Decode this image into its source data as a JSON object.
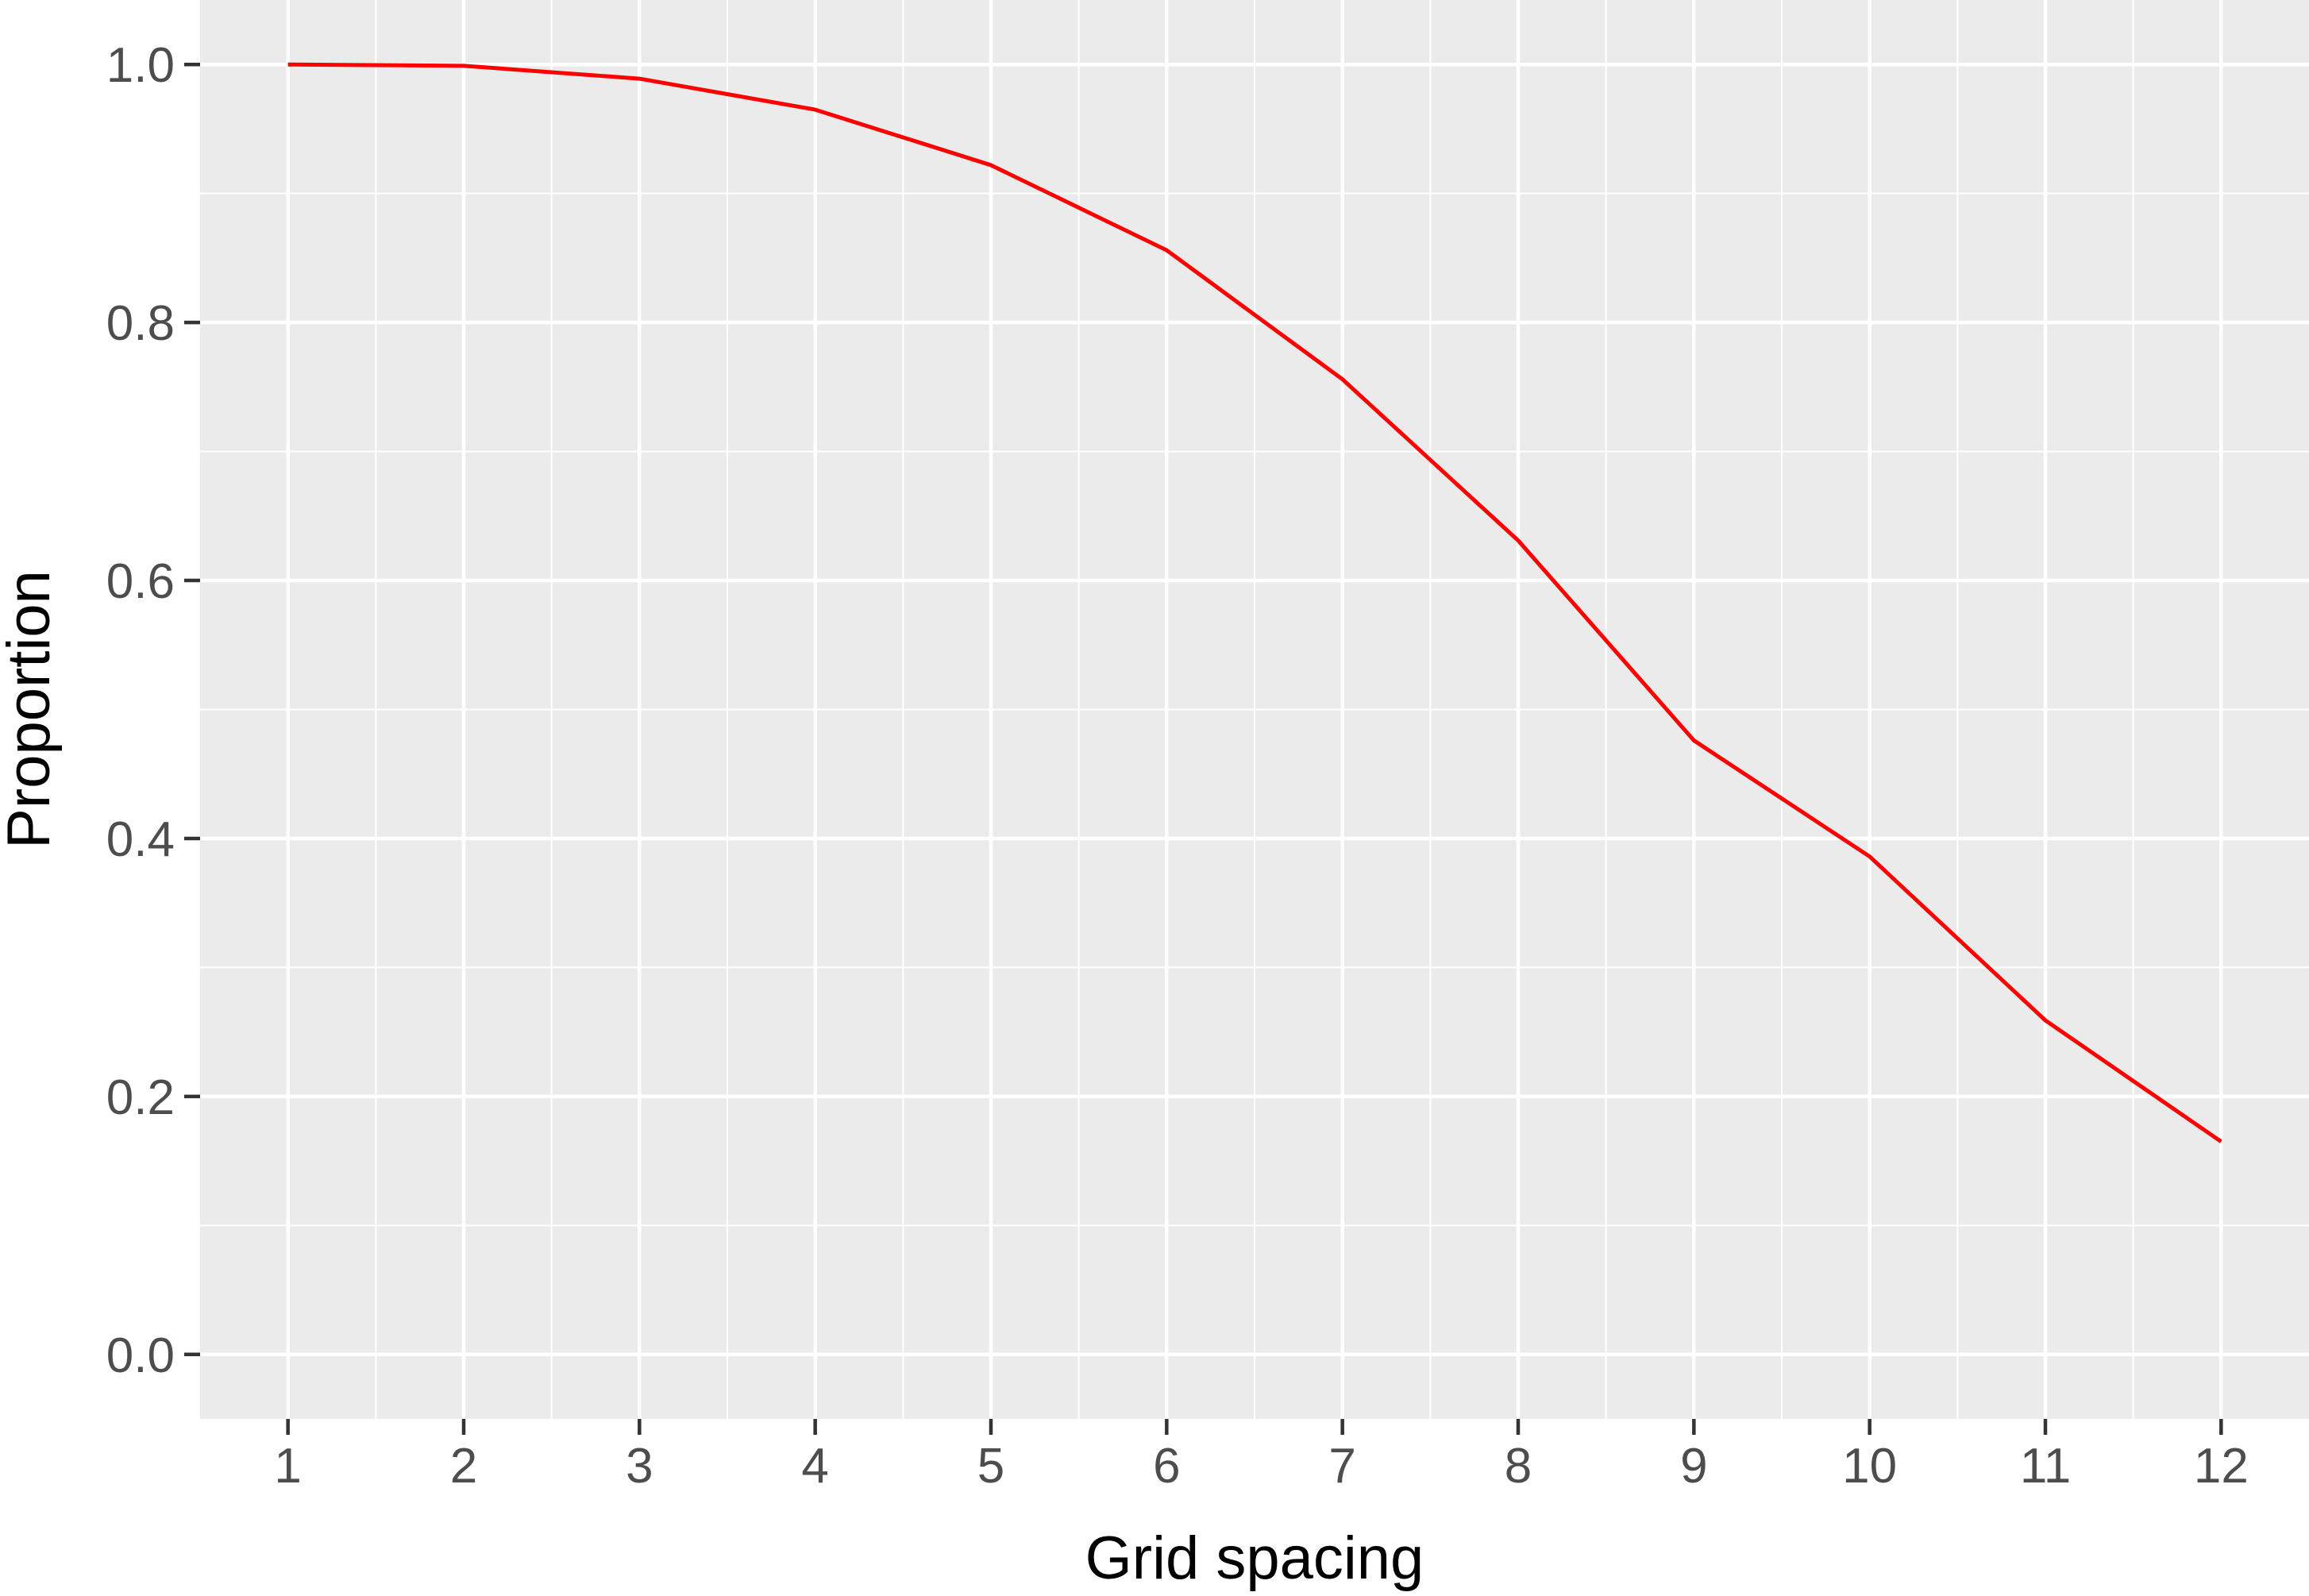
{
  "chart_data": {
    "type": "line",
    "title": "",
    "xlabel": "Grid spacing",
    "ylabel": "Proportion",
    "x": [
      1,
      2,
      3,
      4,
      5,
      6,
      7,
      8,
      9,
      10,
      11,
      12
    ],
    "series": [
      {
        "values": [
          1.0,
          0.999,
          0.989,
          0.965,
          0.922,
          0.856,
          0.756,
          0.631,
          0.476,
          0.386,
          0.259,
          0.165
        ],
        "color": "#ff0000"
      }
    ],
    "xticks": [
      "1",
      "2",
      "3",
      "4",
      "5",
      "6",
      "7",
      "8",
      "9",
      "10",
      "11",
      "12"
    ],
    "yticks": [
      "0.0",
      "0.2",
      "0.4",
      "0.6",
      "0.8",
      "1.0"
    ],
    "xlim": [
      0.5,
      12.5
    ],
    "ylim": [
      -0.05,
      1.05
    ],
    "grid": true,
    "legend": "none",
    "panel_background": "#ebebeb",
    "gridline_color": "#ffffff"
  }
}
